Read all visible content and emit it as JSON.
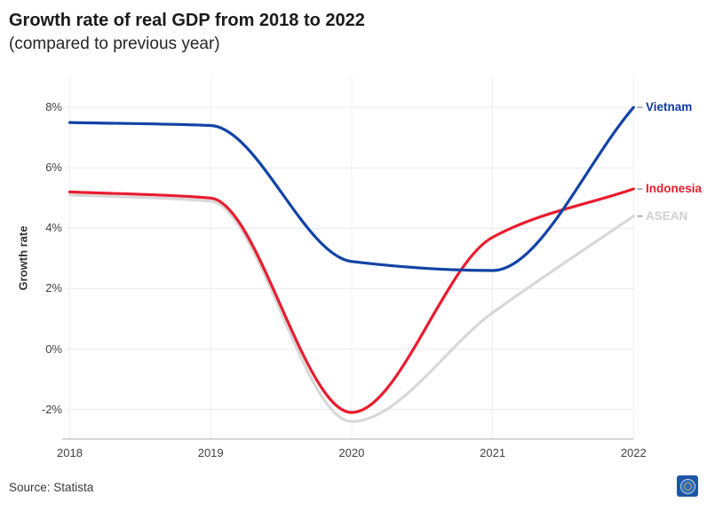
{
  "header": {
    "title": "Growth rate of real GDP from 2018 to 2022",
    "subtitle": "(compared to previous year)"
  },
  "footer": {
    "source": "Source: Statista",
    "logo": "round-seal-on-blue-square"
  },
  "chart_data": {
    "type": "line",
    "title": "Growth rate of real GDP from 2018 to 2022",
    "subtitle": "(compared to previous year)",
    "xlabel": "",
    "ylabel": "Growth rate",
    "x": [
      2018,
      2019,
      2020,
      2021,
      2022
    ],
    "x_labels": [
      "2018",
      "2019",
      "2020",
      "2021",
      "2022"
    ],
    "series": [
      {
        "name": "ASEAN",
        "values": [
          5.1,
          4.9,
          -2.4,
          1.2,
          4.4
        ],
        "color": "#d8d8d8",
        "label_color": "#cfcfcf"
      },
      {
        "name": "Indonesia",
        "values": [
          5.2,
          5.0,
          -2.1,
          3.7,
          5.3
        ],
        "color": "#e81c2e",
        "label_color": "#e81c2e"
      },
      {
        "name": "Vietnam",
        "values": [
          7.5,
          7.4,
          2.9,
          2.6,
          8.0
        ],
        "color": "#1143a6",
        "label_color": "#0d3aa0"
      }
    ],
    "yticks": [
      {
        "value": 8,
        "label": "8%"
      },
      {
        "value": 6,
        "label": "6%"
      },
      {
        "value": 4,
        "label": "4%"
      },
      {
        "value": 2,
        "label": "2%"
      },
      {
        "value": 0,
        "label": "0%"
      },
      {
        "value": -2,
        "label": "-2%"
      }
    ],
    "ylim": [
      -3,
      9
    ],
    "grid": true,
    "legend_position": "right-of-line-ends",
    "colors": {
      "gridline": "#e9e9e9",
      "vertical_gridline": "#efefef",
      "axis_line": "#b0b0b0",
      "legend_dash": "#999999",
      "tick_text": "#3f3f3f"
    }
  }
}
